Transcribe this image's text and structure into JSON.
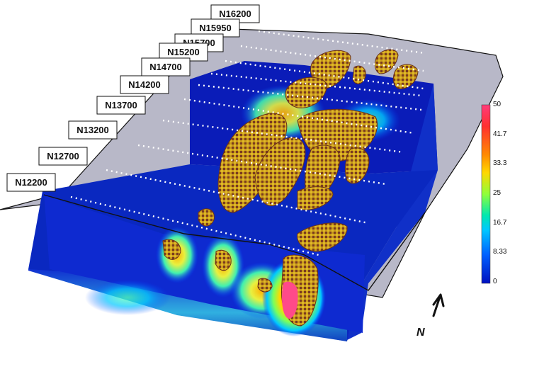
{
  "figure": {
    "description_text_none": "",
    "sections": [
      {
        "label": "N16200"
      },
      {
        "label": "N15950"
      },
      {
        "label": "N15700"
      },
      {
        "label": "N15200"
      },
      {
        "label": "N14700"
      },
      {
        "label": "N14200"
      },
      {
        "label": "N13700"
      },
      {
        "label": "N13200"
      },
      {
        "label": "N12700"
      },
      {
        "label": "N12200"
      }
    ],
    "colorbar": {
      "ticks": [
        "50",
        "41.7",
        "33.3",
        "25",
        "16.7",
        "8.33",
        "0"
      ],
      "min": 0,
      "max": 50,
      "colors": [
        "#ff3b7a",
        "#ff3030",
        "#ff8a00",
        "#ffd800",
        "#8fff3a",
        "#00e8b0",
        "#00c8ff",
        "#0060ff",
        "#0010c0"
      ]
    },
    "north_arrow": {
      "letter": "N"
    }
  }
}
